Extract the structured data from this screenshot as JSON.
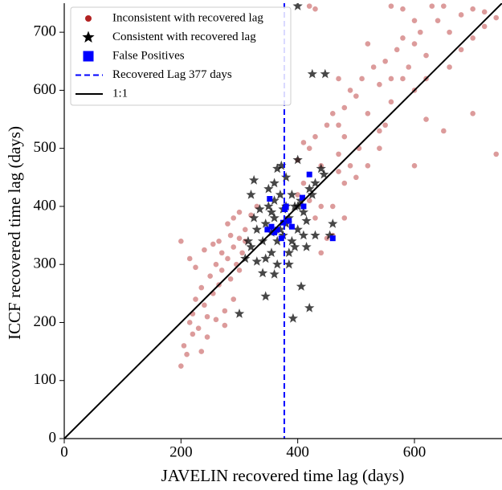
{
  "chart_data": {
    "type": "scatter",
    "xlabel": "JAVELIN recovered time lag (days)",
    "ylabel": "ICCF recovered time lag (days)",
    "xlim": [
      0,
      750
    ],
    "ylim": [
      0,
      750
    ],
    "xticks": [
      0,
      200,
      400,
      600
    ],
    "yticks": [
      0,
      100,
      200,
      300,
      400,
      500,
      600,
      700
    ],
    "legend": "upper left",
    "series": [
      {
        "name": "Inconsistent with recovered lag",
        "color": "#b22222",
        "marker": "circle",
        "x": [
          200,
          205,
          210,
          215,
          220,
          225,
          230,
          235,
          240,
          245,
          250,
          255,
          260,
          265,
          270,
          275,
          280,
          285,
          290,
          295,
          300,
          305,
          310,
          200,
          215,
          225,
          240,
          255,
          265,
          280,
          290,
          300,
          245,
          260,
          275,
          290,
          220,
          235,
          300,
          310,
          320,
          330,
          285,
          270,
          400,
          410,
          420,
          430,
          440,
          450,
          460,
          470,
          480,
          490,
          500,
          510,
          520,
          530,
          540,
          550,
          560,
          570,
          580,
          590,
          600,
          610,
          620,
          640,
          660,
          680,
          700,
          720,
          740,
          650,
          600,
          580,
          560,
          520,
          500,
          480,
          470,
          460,
          420,
          430,
          440,
          450,
          460,
          480,
          400,
          470,
          480,
          540,
          550,
          600,
          620,
          650,
          700,
          740,
          660,
          680,
          700,
          720,
          600,
          580,
          560,
          540,
          620,
          470,
          440,
          420,
          520,
          505,
          630,
          490,
          430,
          410
        ],
        "y": [
          125,
          160,
          145,
          200,
          215,
          240,
          190,
          260,
          230,
          210,
          280,
          250,
          300,
          265,
          290,
          220,
          310,
          275,
          330,
          300,
          345,
          320,
          360,
          340,
          310,
          295,
          325,
          335,
          340,
          370,
          380,
          390,
          175,
          205,
          195,
          240,
          180,
          150,
          290,
          340,
          385,
          400,
          350,
          320,
          480,
          440,
          500,
          520,
          470,
          540,
          560,
          490,
          570,
          600,
          590,
          620,
          560,
          640,
          610,
          650,
          580,
          670,
          690,
          640,
          680,
          700,
          660,
          720,
          700,
          730,
          740,
          735,
          725,
          745,
          720,
          740,
          745,
          470,
          450,
          520,
          540,
          400,
          410,
          380,
          400,
          345,
          350,
          380,
          420,
          620,
          440,
          500,
          540,
          470,
          550,
          530,
          560,
          490,
          640,
          670,
          690,
          710,
          600,
          620,
          620,
          530,
          620,
          460,
          320,
          745,
          680,
          500,
          745,
          470,
          740,
          510
        ]
      },
      {
        "name": "Consistent with recovered lag",
        "color": "#000000",
        "marker": "star",
        "x": [
          400,
          425,
          447,
          455,
          420,
          392,
          406,
          345,
          300,
          360,
          385,
          415,
          325,
          365,
          372,
          400,
          440,
          445,
          350,
          360,
          370,
          380,
          390,
          330,
          340,
          355,
          365,
          375,
          385,
          395,
          405,
          410,
          420,
          430,
          345,
          335,
          325,
          315,
          310,
          320,
          350,
          360,
          370,
          380,
          390,
          400,
          410,
          425,
          365,
          355,
          375,
          345,
          340,
          385,
          430,
          395,
          360,
          380,
          320,
          330,
          400,
          415,
          460,
          355
        ],
        "y": [
          745,
          628,
          628,
          350,
          225,
          207,
          262,
          245,
          215,
          283,
          320,
          330,
          445,
          465,
          470,
          480,
          465,
          455,
          400,
          380,
          360,
          400,
          420,
          360,
          340,
          320,
          300,
          350,
          380,
          400,
          410,
          390,
          430,
          440,
          370,
          395,
          380,
          340,
          310,
          330,
          430,
          410,
          420,
          370,
          340,
          360,
          350,
          420,
          340,
          355,
          395,
          310,
          285,
          300,
          350,
          330,
          440,
          450,
          420,
          305,
          400,
          375,
          370,
          390
        ]
      },
      {
        "name": "False Positives",
        "color": "#0000ff",
        "marker": "square",
        "x": [
          352,
          378,
          348,
          355,
          372,
          385,
          408,
          410,
          420,
          460,
          365,
          390,
          380,
          360,
          375
        ],
        "y": [
          413,
          395,
          360,
          365,
          345,
          375,
          415,
          400,
          455,
          345,
          360,
          365,
          400,
          355,
          372
        ]
      }
    ],
    "vline": {
      "name": "Recovered Lag 377 days",
      "value": 377,
      "color": "#0000ff"
    },
    "diagonal": {
      "name": "1:1",
      "color": "#000000",
      "x": [
        0,
        750
      ],
      "y": [
        0,
        750
      ]
    }
  }
}
